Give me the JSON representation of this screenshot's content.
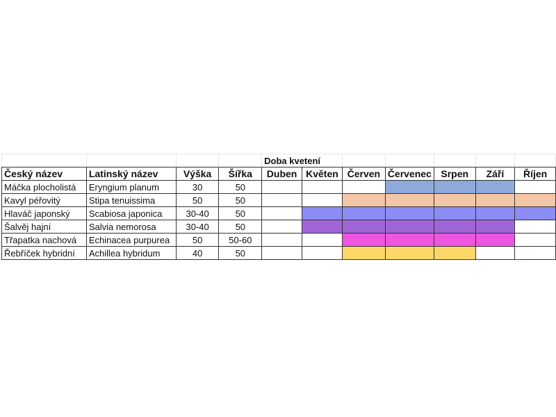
{
  "sheet": {
    "group_header": "Doba kvetení",
    "columns": [
      "Český název",
      "Latinský název",
      "Výška",
      "Šířka",
      "Duben",
      "Květen",
      "Červen",
      "Červenec",
      "Srpen",
      "Září",
      "Říjen"
    ],
    "rows": [
      {
        "czech": "Máčka plocholistá",
        "latin": "Eryngium planum",
        "height": "30",
        "width": "50",
        "bloom_months": [
          "Červenec",
          "Srpen",
          "Září"
        ],
        "color": "#8eaadb"
      },
      {
        "czech": "Kavyl péřovitý",
        "latin": "Stipa tenuissima",
        "height": "50",
        "width": "50",
        "bloom_months": [
          "Červen",
          "Červenec",
          "Srpen",
          "Září",
          "Říjen"
        ],
        "color": "#f4c7a8"
      },
      {
        "czech": "Hlaváč japonský",
        "latin": "Scabiosa japonica",
        "height": "30-40",
        "width": "50",
        "bloom_months": [
          "Květen",
          "Červen",
          "Červenec",
          "Srpen",
          "Září",
          "Říjen"
        ],
        "color": "#8c8cf5"
      },
      {
        "czech": "Šalvěj hajní",
        "latin": "Salvia nemorosa",
        "height": "30-40",
        "width": "50",
        "bloom_months": [
          "Květen",
          "Červen",
          "Červenec",
          "Srpen",
          "Září"
        ],
        "color": "#a066d8"
      },
      {
        "czech": "Třapatka nachová",
        "latin": "Echinacea purpurea",
        "height": "50",
        "width": "50-60",
        "bloom_months": [
          "Červen",
          "Červenec",
          "Srpen",
          "Září"
        ],
        "color": "#ee55e0"
      },
      {
        "czech": "Řebříček hybridní",
        "latin": "Achillea hybridum",
        "height": "40",
        "width": "50",
        "bloom_months": [
          "Červen",
          "Červenec",
          "Srpen"
        ],
        "color": "#fdd868"
      }
    ]
  }
}
